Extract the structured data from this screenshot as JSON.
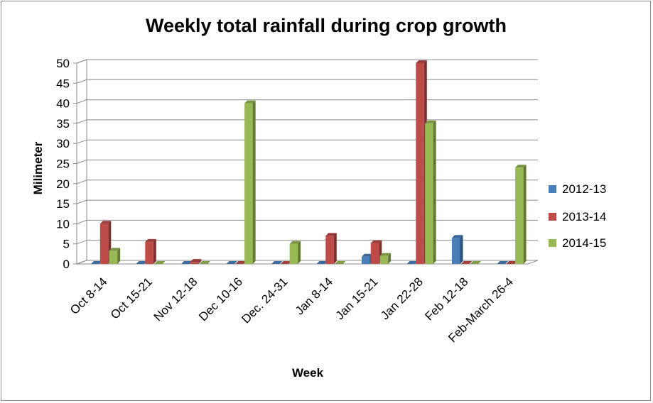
{
  "chart_data": {
    "type": "bar",
    "title": "Weekly  total rainfall during crop growth",
    "xlabel": "Week",
    "ylabel": "Milimeter",
    "ylim": [
      0,
      50
    ],
    "yticks": [
      "0",
      "5",
      "10",
      "15",
      "20",
      "25",
      "30",
      "35",
      "40",
      "45",
      "50"
    ],
    "grid": true,
    "legend_position": "right",
    "categories": [
      "Oct 8-14",
      "Oct 15-21",
      "Nov 12-18",
      "Dec 10-16",
      "Dec. 24-31",
      "Jan 8-14",
      "Jan 15-21",
      "Jan  22-28",
      "Feb 12-18",
      "Feb-March 26-4"
    ],
    "series": [
      {
        "name": "2012-13",
        "color": "#4a7ebb",
        "values": [
          0,
          0,
          0,
          0,
          0,
          0,
          1.8,
          0,
          6.5,
          0
        ]
      },
      {
        "name": "2013-14",
        "color": "#be4b48",
        "values": [
          10,
          5.5,
          0.5,
          0,
          0,
          7,
          5.2,
          50,
          0,
          0
        ]
      },
      {
        "name": "2014-15",
        "color": "#98b954",
        "values": [
          3.3,
          0,
          0,
          40,
          5,
          0,
          2,
          35,
          0,
          24
        ]
      }
    ]
  }
}
